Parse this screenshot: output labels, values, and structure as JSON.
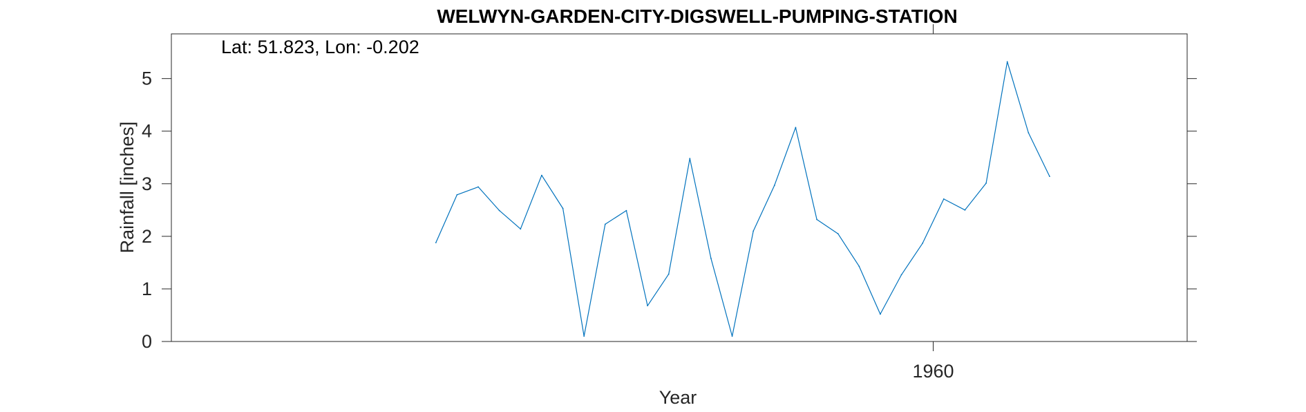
{
  "chart_data": {
    "type": "line",
    "title": "WELWYN-GARDEN-CITY-DIGSWELL-PUMPING-STATION",
    "xlabel": "Year",
    "ylabel": "Rainfall [inches]",
    "annotation": "Lat: 51.823, Lon: -0.202",
    "xlim": [
      1924,
      1972
    ],
    "ylim": [
      0,
      5.85
    ],
    "x_ticks": [
      1960
    ],
    "x_tick_labels": [
      "1960"
    ],
    "y_ticks": [
      0,
      1,
      2,
      3,
      4,
      5
    ],
    "y_tick_labels": [
      "0",
      "1",
      "2",
      "3",
      "4",
      "5"
    ],
    "grid": false,
    "line_color": "#0072BD",
    "series": [
      {
        "x": [
          1936.5,
          1937.5,
          1938.5,
          1939.5,
          1940.5,
          1941.5,
          1942.5,
          1943.5,
          1944.5,
          1945.5,
          1946.5,
          1947.5,
          1948.5,
          1949.5,
          1950.5,
          1951.5,
          1952.5,
          1953.5,
          1954.5,
          1955.5,
          1956.5,
          1957.5,
          1958.5,
          1959.5,
          1960.5,
          1961.5,
          1962.5,
          1963.5,
          1964.5,
          1965.5
        ],
        "values": [
          1.88,
          2.79,
          2.94,
          2.49,
          2.14,
          3.16,
          2.53,
          0.1,
          2.23,
          2.49,
          0.68,
          1.28,
          3.48,
          1.58,
          0.1,
          2.1,
          2.97,
          4.07,
          2.32,
          2.05,
          1.43,
          0.52,
          1.27,
          1.87,
          2.71,
          2.5,
          3.01,
          5.32,
          3.97,
          3.14
        ]
      }
    ]
  }
}
